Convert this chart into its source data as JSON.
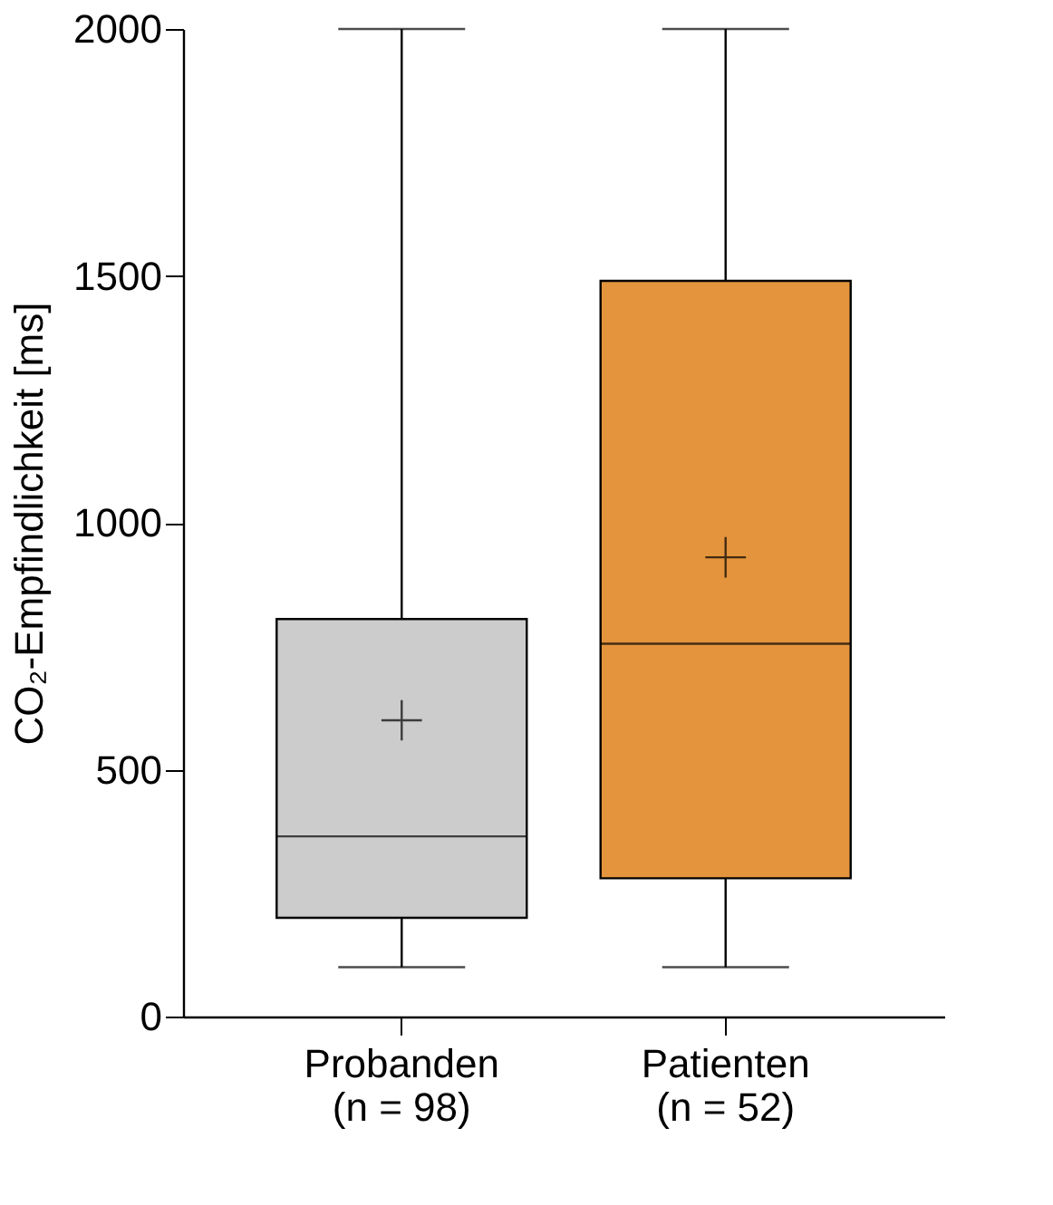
{
  "chart_data": {
    "type": "box",
    "ylabel": "CO₂-Empfindlichkeit [ms]",
    "categories": [
      "Probanden\n(n = 98)",
      "Patienten\n(n = 52)"
    ],
    "colors": [
      "#cccccc",
      "#e3943c"
    ],
    "boxes": [
      {
        "low": 100,
        "q1": 200,
        "median": 365,
        "q3": 805,
        "high": 2000,
        "mean": 600
      },
      {
        "low": 100,
        "q1": 280,
        "median": 755,
        "q3": 1490,
        "high": 2000,
        "mean": 930
      }
    ],
    "ylim": [
      0,
      2000
    ],
    "yticks": [
      0,
      500,
      1000,
      1500,
      2000
    ],
    "grid": false,
    "legend": false
  }
}
